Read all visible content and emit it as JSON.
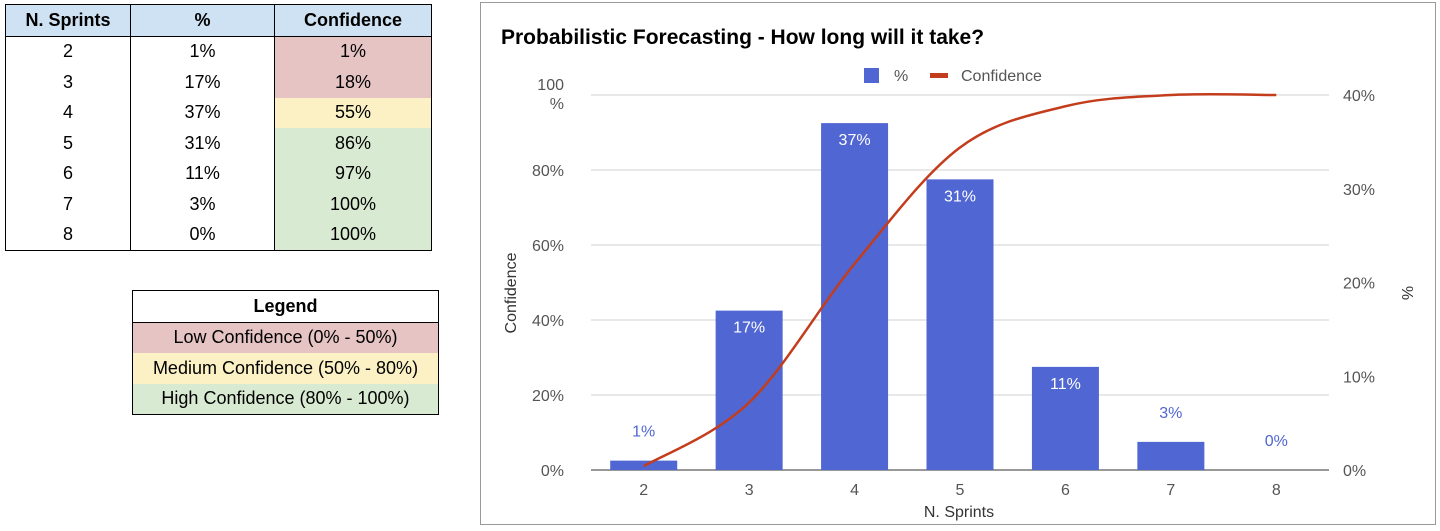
{
  "table": {
    "headers": [
      "N. Sprints",
      "%",
      "Confidence"
    ],
    "rows": [
      {
        "sprints": "2",
        "pct": "1%",
        "conf": "1%",
        "level": "low"
      },
      {
        "sprints": "3",
        "pct": "17%",
        "conf": "18%",
        "level": "low"
      },
      {
        "sprints": "4",
        "pct": "37%",
        "conf": "55%",
        "level": "med"
      },
      {
        "sprints": "5",
        "pct": "31%",
        "conf": "86%",
        "level": "high"
      },
      {
        "sprints": "6",
        "pct": "11%",
        "conf": "97%",
        "level": "high"
      },
      {
        "sprints": "7",
        "pct": "3%",
        "conf": "100%",
        "level": "high"
      },
      {
        "sprints": "8",
        "pct": "0%",
        "conf": "100%",
        "level": "high"
      }
    ]
  },
  "legend": {
    "title": "Legend",
    "items": [
      {
        "label": "Low Confidence (0% - 50%)",
        "level": "low"
      },
      {
        "label": "Medium Confidence (50% - 80%)",
        "level": "med"
      },
      {
        "label": "High Confidence (80% - 100%)",
        "level": "high"
      }
    ]
  },
  "colors": {
    "bar": "#5066d2",
    "line": "#c33d1c",
    "low": "#e6c4c4",
    "med": "#fbf1c5",
    "high": "#d9ead3"
  },
  "chart_data": {
    "type": "bar",
    "title": "Probabilistic Forecasting - How long will it take?",
    "xlabel": "N. Sprints",
    "ylabel_left": "Confidence",
    "ylabel_right": "%",
    "categories": [
      "2",
      "3",
      "4",
      "5",
      "6",
      "7",
      "8"
    ],
    "series": [
      {
        "name": "%",
        "type": "bar",
        "axis": "right",
        "values": [
          1,
          17,
          37,
          31,
          11,
          3,
          0
        ],
        "labels": [
          "1%",
          "17%",
          "37%",
          "31%",
          "11%",
          "3%",
          "0%"
        ]
      },
      {
        "name": "Confidence",
        "type": "line",
        "axis": "left",
        "values": [
          1,
          18,
          55,
          86,
          97,
          100,
          100
        ]
      }
    ],
    "left_axis": {
      "range": [
        0,
        100
      ],
      "ticks": [
        "0%",
        "20%",
        "40%",
        "60%",
        "80%"
      ],
      "top_label_value": "100",
      "top_label_unit": "%"
    },
    "right_axis": {
      "range": [
        0,
        40
      ],
      "ticks": [
        "0%",
        "10%",
        "20%",
        "30%",
        "40%"
      ]
    },
    "legend_position": "top",
    "grid": true
  }
}
